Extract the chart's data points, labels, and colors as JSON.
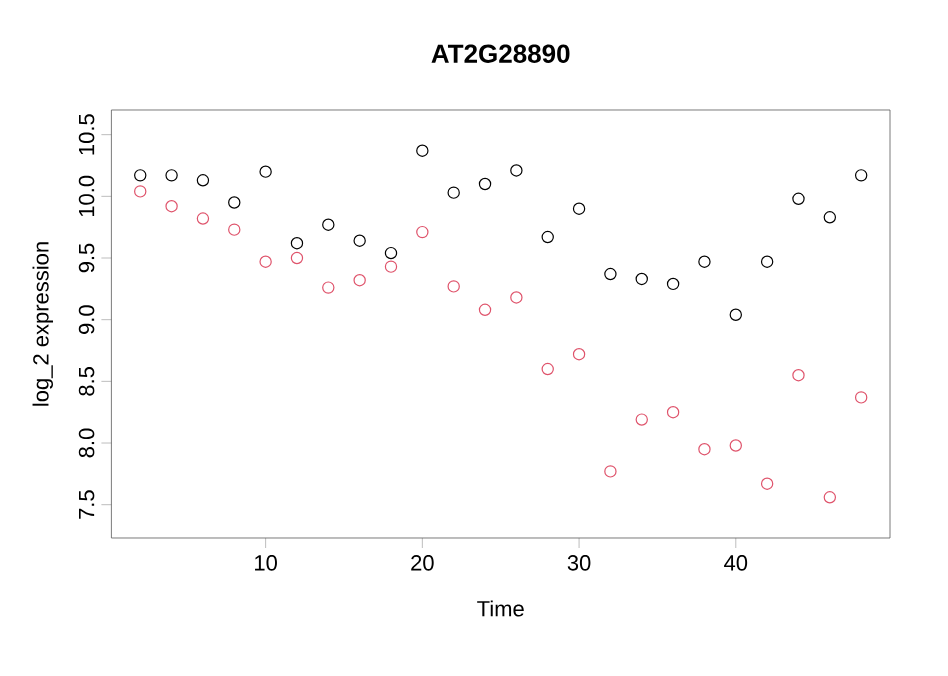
{
  "chart_data": {
    "type": "scatter",
    "title": "AT2G28890",
    "xlabel": "Time",
    "ylabel": "log_2 expression",
    "marker": "circle",
    "grid": false,
    "x": [
      2,
      4,
      6,
      8,
      10,
      12,
      14,
      16,
      18,
      20,
      22,
      24,
      26,
      28,
      30,
      32,
      34,
      36,
      38,
      40,
      42,
      44,
      46,
      48
    ],
    "xlim": [
      0.16,
      49.84
    ],
    "ylim": [
      7.23,
      10.7
    ],
    "xticks": [
      10,
      20,
      30,
      40
    ],
    "yticks": [
      7.5,
      {
        "value": 8,
        "label": "8.0"
      },
      8.5,
      {
        "value": 9,
        "label": "9.0"
      },
      9.5,
      {
        "value": 10,
        "label": "10.0"
      },
      10.5
    ],
    "series": [
      {
        "color": "#000000",
        "values": [
          10.17,
          10.17,
          10.13,
          9.95,
          10.2,
          9.62,
          9.77,
          9.64,
          9.54,
          10.37,
          10.03,
          10.1,
          10.21,
          9.67,
          9.9,
          9.37,
          9.33,
          9.29,
          9.47,
          9.04,
          9.47,
          9.98,
          9.83,
          10.17
        ]
      },
      {
        "color": "#df536b",
        "values": [
          10.04,
          9.92,
          9.82,
          9.73,
          9.47,
          9.5,
          9.26,
          9.32,
          9.43,
          9.71,
          9.27,
          9.08,
          9.18,
          8.6,
          8.72,
          7.77,
          8.19,
          8.25,
          7.95,
          7.98,
          7.67,
          8.55,
          7.56,
          8.37
        ]
      }
    ]
  }
}
